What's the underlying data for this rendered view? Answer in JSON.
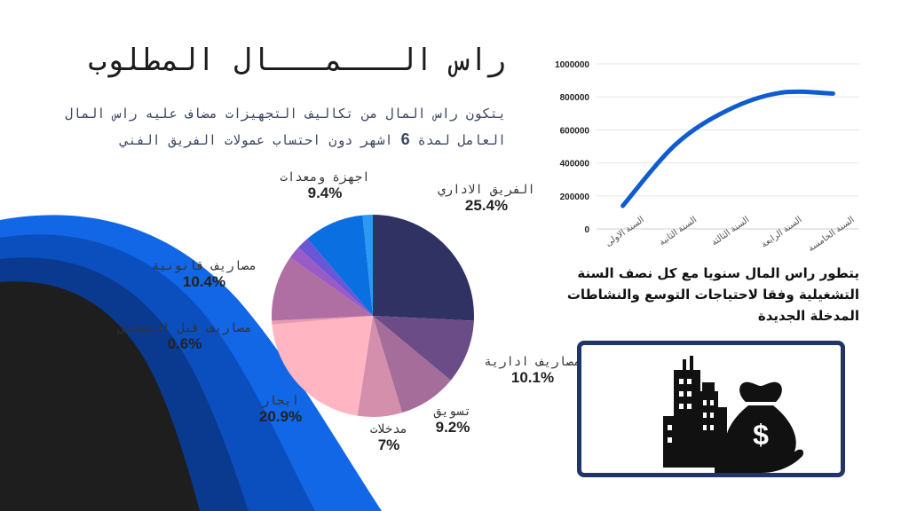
{
  "title": "راس الـــمـــال المطلوب",
  "description": {
    "part1": "يتكون راس المال من تكاليف التجهيزات مضاف عليه راس المال العامل لمدة ",
    "months": "6",
    "part2": " اشهر دون احتساب عمولات الفريق الفني"
  },
  "chart_note": "يتطور راس المال سنويا مع كل نصف السنة التشغيلية وفقا لاحتياجات التوسع والنشاطات المدخلة الجديدة",
  "colors": {
    "accent_blue": "#0a5ad6",
    "dark_wave": "#1e1e1e",
    "box_border": "#1f3566",
    "line": "#0f5bd0"
  },
  "icon": "buildings-money-bag-icon",
  "chart_data": [
    {
      "type": "pie",
      "slices": [
        {
          "label": "الفريق الاداري",
          "value": 25.4,
          "display": "25.4%",
          "color": "#2f3262"
        },
        {
          "label": "مصاريف ادارية",
          "value": 10.1,
          "display": "10.1%",
          "color": "#6b4c86"
        },
        {
          "label": "تسويق",
          "value": 9.2,
          "display": "9.2%",
          "color": "#a56e9a"
        },
        {
          "label": "مدخلات",
          "value": 7,
          "display": "7%",
          "color": "#d48fad"
        },
        {
          "label": "ايجار",
          "value": 20.9,
          "display": "20.9%",
          "color": "#ffb6c2"
        },
        {
          "label": "مصاريف قبل التشغيل",
          "value": 0.6,
          "display": "0.6%",
          "color": "#e79ab0"
        },
        {
          "label": "مصاريف قانونية",
          "value": 10.4,
          "display": "10.4%",
          "color": "#b06fa3"
        },
        {
          "label": "",
          "value": 2.0,
          "display": "",
          "color": "#9b5bc6"
        },
        {
          "label": "",
          "value": 2.0,
          "display": "",
          "color": "#6a56d6"
        },
        {
          "label": "اجهزة ومعدات",
          "value": 9.4,
          "display": "9.4%",
          "color": "#0a6fe0"
        },
        {
          "label": "",
          "value": 1.6,
          "display": "",
          "color": "#2a9af5"
        }
      ]
    },
    {
      "type": "line",
      "categories": [
        "السنة الاولى",
        "السنة الثانية",
        "السنة الثالثة",
        "السنة الرابعة",
        "السنة الخامسة"
      ],
      "series": [
        {
          "values": [
            140000,
            510000,
            720000,
            825000,
            820000
          ]
        }
      ],
      "ylim": [
        0,
        1000000
      ],
      "yticks": [
        0,
        200000,
        400000,
        600000,
        800000,
        1000000
      ],
      "grid": true
    }
  ]
}
